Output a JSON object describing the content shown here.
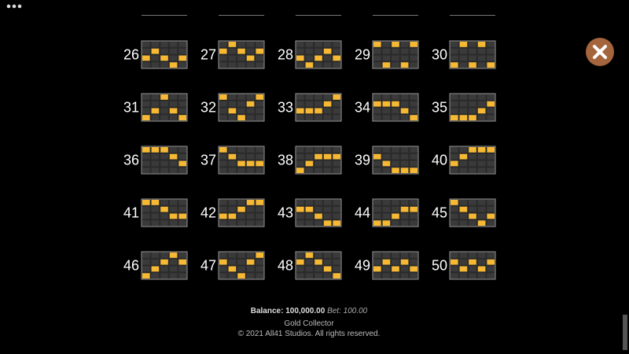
{
  "paylines": [
    {
      "number": "26",
      "rows": [
        2,
        1,
        2,
        3,
        2
      ]
    },
    {
      "number": "27",
      "rows": [
        1,
        0,
        1,
        2,
        1
      ]
    },
    {
      "number": "28",
      "rows": [
        2,
        3,
        2,
        1,
        2
      ]
    },
    {
      "number": "29",
      "rows": [
        0,
        3,
        0,
        3,
        0
      ]
    },
    {
      "number": "30",
      "rows": [
        3,
        0,
        3,
        0,
        3
      ]
    },
    {
      "number": "31",
      "rows": [
        3,
        2,
        0,
        2,
        3
      ]
    },
    {
      "number": "32",
      "rows": [
        0,
        2,
        3,
        1,
        0
      ]
    },
    {
      "number": "33",
      "rows": [
        2,
        2,
        2,
        1,
        0
      ]
    },
    {
      "number": "34",
      "rows": [
        1,
        1,
        1,
        2,
        3
      ]
    },
    {
      "number": "35",
      "rows": [
        3,
        3,
        3,
        2,
        1
      ]
    },
    {
      "number": "36",
      "rows": [
        0,
        0,
        0,
        1,
        2
      ]
    },
    {
      "number": "37",
      "rows": [
        0,
        1,
        2,
        2,
        2
      ]
    },
    {
      "number": "38",
      "rows": [
        3,
        2,
        1,
        1,
        1
      ]
    },
    {
      "number": "39",
      "rows": [
        1,
        2,
        3,
        3,
        3
      ]
    },
    {
      "number": "40",
      "rows": [
        2,
        1,
        0,
        0,
        0
      ]
    },
    {
      "number": "41",
      "rows": [
        0,
        0,
        1,
        2,
        2
      ]
    },
    {
      "number": "42",
      "rows": [
        2,
        2,
        1,
        0,
        0
      ]
    },
    {
      "number": "43",
      "rows": [
        1,
        1,
        2,
        3,
        3
      ]
    },
    {
      "number": "44",
      "rows": [
        3,
        3,
        2,
        1,
        1
      ]
    },
    {
      "number": "45",
      "rows": [
        0,
        1,
        2,
        3,
        2
      ]
    },
    {
      "number": "46",
      "rows": [
        3,
        2,
        1,
        0,
        1
      ]
    },
    {
      "number": "47",
      "rows": [
        1,
        2,
        3,
        1,
        0
      ]
    },
    {
      "number": "48",
      "rows": [
        1,
        0,
        1,
        2,
        3
      ]
    },
    {
      "number": "49",
      "rows": [
        2,
        1,
        2,
        1,
        2
      ]
    },
    {
      "number": "50",
      "rows": [
        1,
        2,
        1,
        2,
        1
      ]
    }
  ],
  "footer": {
    "balance_label": "Balance:",
    "balance": "100,000.00",
    "bet_label": "Bet:",
    "bet": "100.00",
    "game": "Gold Collector",
    "copyright": "© 2021 All41 Studios. All rights reserved."
  }
}
